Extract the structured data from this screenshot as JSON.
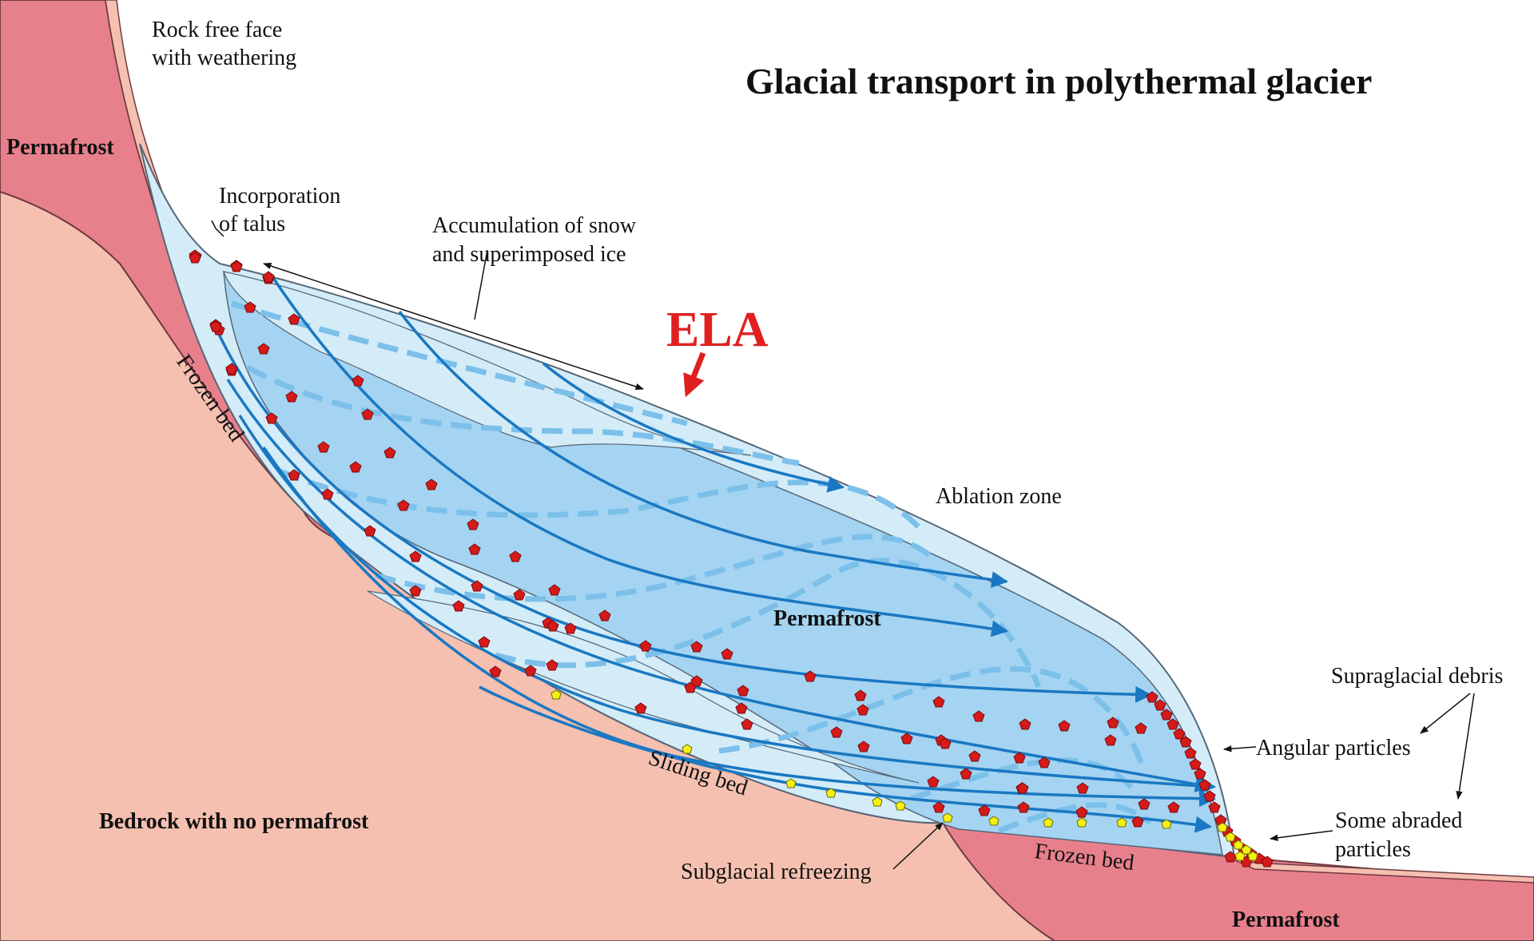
{
  "title": "Glacial transport in polythermal glacier",
  "labels": {
    "rock_free_face_1": "Rock free face",
    "rock_free_face_2": "with weathering",
    "permafrost_top_left": "Permafrost",
    "incorporation_1": "Incorporation",
    "incorporation_2": "of talus",
    "accumulation_1": "Accumulation of snow",
    "accumulation_2": "and superimposed ice",
    "ela": "ELA",
    "frozen_bed_left": "Frozen bed",
    "ablation_zone": "Ablation zone",
    "permafrost_center": "Permafrost",
    "supraglacial_debris": "Supraglacial debris",
    "angular_particles": "Angular particles",
    "some_abraded_1": "Some abraded",
    "some_abraded_2": "particles",
    "sliding_bed": "Sliding bed",
    "bedrock": "Bedrock with no permafrost",
    "subglacial_refreezing": "Subglacial refreezing",
    "frozen_bed_right": "Frozen bed",
    "permafrost_bottom_right": "Permafrost"
  },
  "colors": {
    "bedrock": "#f5c0b0",
    "permafrost": "#e8808c",
    "ice_light": "#d4ecf8",
    "ice_mid": "#a4d4f2",
    "flow_line": "#1a78c2",
    "isochrone": "#7cc0ea",
    "ela_red": "#e02020",
    "angular_debris": "#d41a1a",
    "abraded_debris": "#f5f010"
  }
}
